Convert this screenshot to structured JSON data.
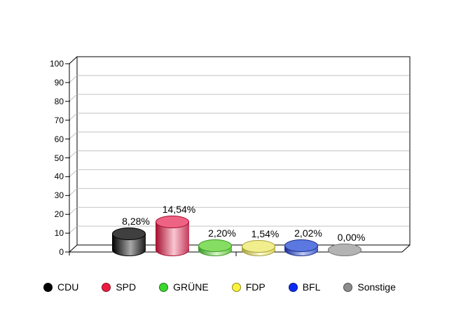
{
  "chart_data": {
    "type": "bar",
    "style": "3d-cylinder",
    "title": "",
    "categories": [
      "CDU",
      "SPD",
      "GRÜNE",
      "FDP",
      "BFL",
      "Sonstige"
    ],
    "values": [
      8.28,
      14.54,
      2.2,
      1.54,
      2.02,
      0.0
    ],
    "value_labels": [
      "8,28%",
      "14,54%",
      "2,20%",
      "1,54%",
      "2,02%",
      "0,00%"
    ],
    "xlabel": "",
    "ylabel": "",
    "ylim": [
      0,
      100
    ],
    "yticks": [
      0,
      10,
      20,
      30,
      40,
      50,
      60,
      70,
      80,
      90,
      100
    ],
    "grid": true,
    "legend_position": "bottom",
    "series_colors": [
      {
        "name": "CDU",
        "legend": "#000000",
        "top": "#3f3f3f",
        "rim": "#000000",
        "body": [
          "#000000",
          "#a8a8a8",
          "#1a1a1a"
        ]
      },
      {
        "name": "SPD",
        "legend": "#ed1b41",
        "top": "#ee6384",
        "rim": "#a50d2d",
        "body": [
          "#a50d2d",
          "#f9c6d1",
          "#c43b5c"
        ]
      },
      {
        "name": "GRÜNE",
        "legend": "#3bd82b",
        "top": "#85dd61",
        "rim": "#3a9b26",
        "body": [
          "#3a9b26",
          "#dcf5cc",
          "#66c244"
        ]
      },
      {
        "name": "FDP",
        "legend": "#fcf23c",
        "top": "#f1ee8e",
        "rim": "#a9a139",
        "body": [
          "#a9a139",
          "#fdfbda",
          "#d9d35e"
        ]
      },
      {
        "name": "BFL",
        "legend": "#0b2bf2",
        "top": "#5b77e0",
        "rim": "#1c2f8c",
        "body": [
          "#1c2f9c",
          "#bcc9f2",
          "#4a66cc"
        ]
      },
      {
        "name": "Sonstige",
        "legend": "#8c8c8c",
        "top": "#b3b3b3",
        "rim": "#7a7a7a",
        "body": [
          "#7a7a7a",
          "#cfcfcf",
          "#9a9a9a"
        ]
      }
    ],
    "colors": {
      "background": "#ffffff",
      "gridline": "#c3c3c3",
      "axis": "#000000",
      "text": "#000000"
    }
  }
}
